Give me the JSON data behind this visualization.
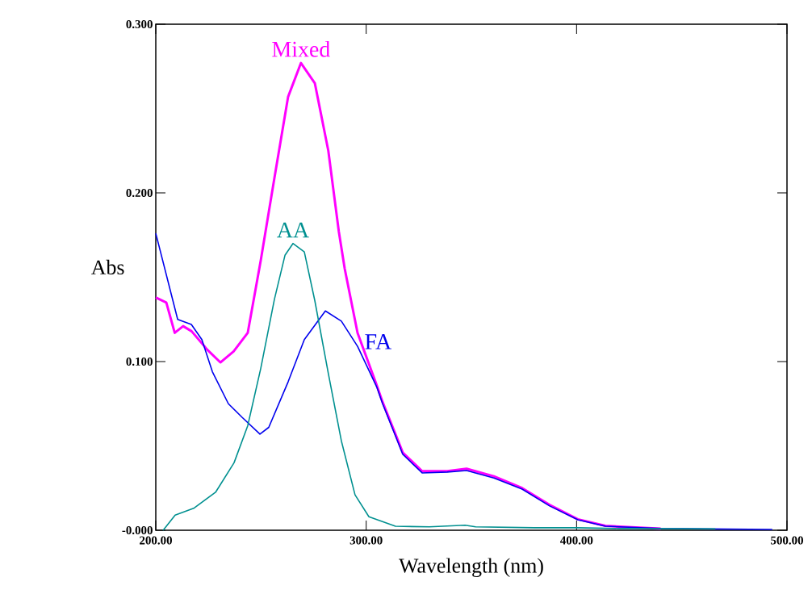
{
  "chart_data": {
    "type": "line",
    "xlabel": "Wavelength (nm)",
    "ylabel": "Abs",
    "xlim": [
      200,
      500
    ],
    "ylim": [
      0,
      0.3
    ],
    "xticks": [
      {
        "value": 200,
        "label": "200.00"
      },
      {
        "value": 300,
        "label": "300.00"
      },
      {
        "value": 400,
        "label": "400.00"
      },
      {
        "value": 500,
        "label": "500.00"
      }
    ],
    "yticks": [
      {
        "value": 0,
        "label": "-0.000"
      },
      {
        "value": 0.1,
        "label": "0.100"
      },
      {
        "value": 0.2,
        "label": "0.200"
      },
      {
        "value": 0.3,
        "label": "0.300"
      }
    ],
    "grid": false,
    "legend": false,
    "marker": "none",
    "line_style": "solid",
    "series": [
      {
        "name": "Mixed",
        "color": "#ff00ff",
        "x": [
          200,
          205,
          209,
          213,
          217,
          224.5,
          230.7,
          237,
          243.7,
          249.9,
          256.4,
          262.9,
          269,
          275.6,
          282,
          287,
          289.8,
          295.9,
          305,
          307.8,
          313.9,
          317.4,
          326.6,
          338.5,
          347.7,
          360.7,
          374.1,
          387.2,
          400.6,
          413.7,
          440
        ],
        "values": [
          0.138,
          0.135,
          0.117,
          0.121,
          0.118,
          0.107,
          0.0995,
          0.106,
          0.117,
          0.16,
          0.209,
          0.257,
          0.277,
          0.265,
          0.225,
          0.177,
          0.155,
          0.117,
          0.086,
          0.076,
          0.057,
          0.046,
          0.035,
          0.035,
          0.0365,
          0.032,
          0.025,
          0.015,
          0.0065,
          0.0026,
          0.001
        ]
      },
      {
        "name": "FA",
        "color": "#0000ee",
        "x": [
          200,
          210.4,
          216.9,
          221.9,
          226.9,
          234.5,
          241,
          249.5,
          253.7,
          262.9,
          270.6,
          280.6,
          288.2,
          295.9,
          305,
          307.8,
          313.9,
          317.4,
          326.6,
          338.5,
          347.7,
          360.7,
          374.1,
          387.2,
          400.6,
          413.7,
          440,
          493
        ],
        "values": [
          0.176,
          0.125,
          0.122,
          0.113,
          0.094,
          0.075,
          0.067,
          0.057,
          0.061,
          0.088,
          0.113,
          0.13,
          0.124,
          0.109,
          0.085,
          0.075,
          0.056,
          0.045,
          0.034,
          0.0345,
          0.0354,
          0.031,
          0.0244,
          0.0144,
          0.0062,
          0.0024,
          0.001,
          0.0005
        ]
      },
      {
        "name": "AA",
        "color": "#009090",
        "x": [
          203.5,
          209.2,
          218,
          228.4,
          237.2,
          243.7,
          249.9,
          256.4,
          261.4,
          265.2,
          270.6,
          275.6,
          282,
          288.2,
          294.7,
          301.3,
          313.9,
          330,
          347,
          352,
          380,
          400,
          420,
          466
        ],
        "values": [
          0.0,
          0.009,
          0.013,
          0.0225,
          0.04,
          0.062,
          0.096,
          0.137,
          0.163,
          0.17,
          0.165,
          0.136,
          0.093,
          0.053,
          0.021,
          0.008,
          0.0024,
          0.002,
          0.003,
          0.002,
          0.0015,
          0.0015,
          0.001,
          0.0008
        ]
      }
    ]
  }
}
